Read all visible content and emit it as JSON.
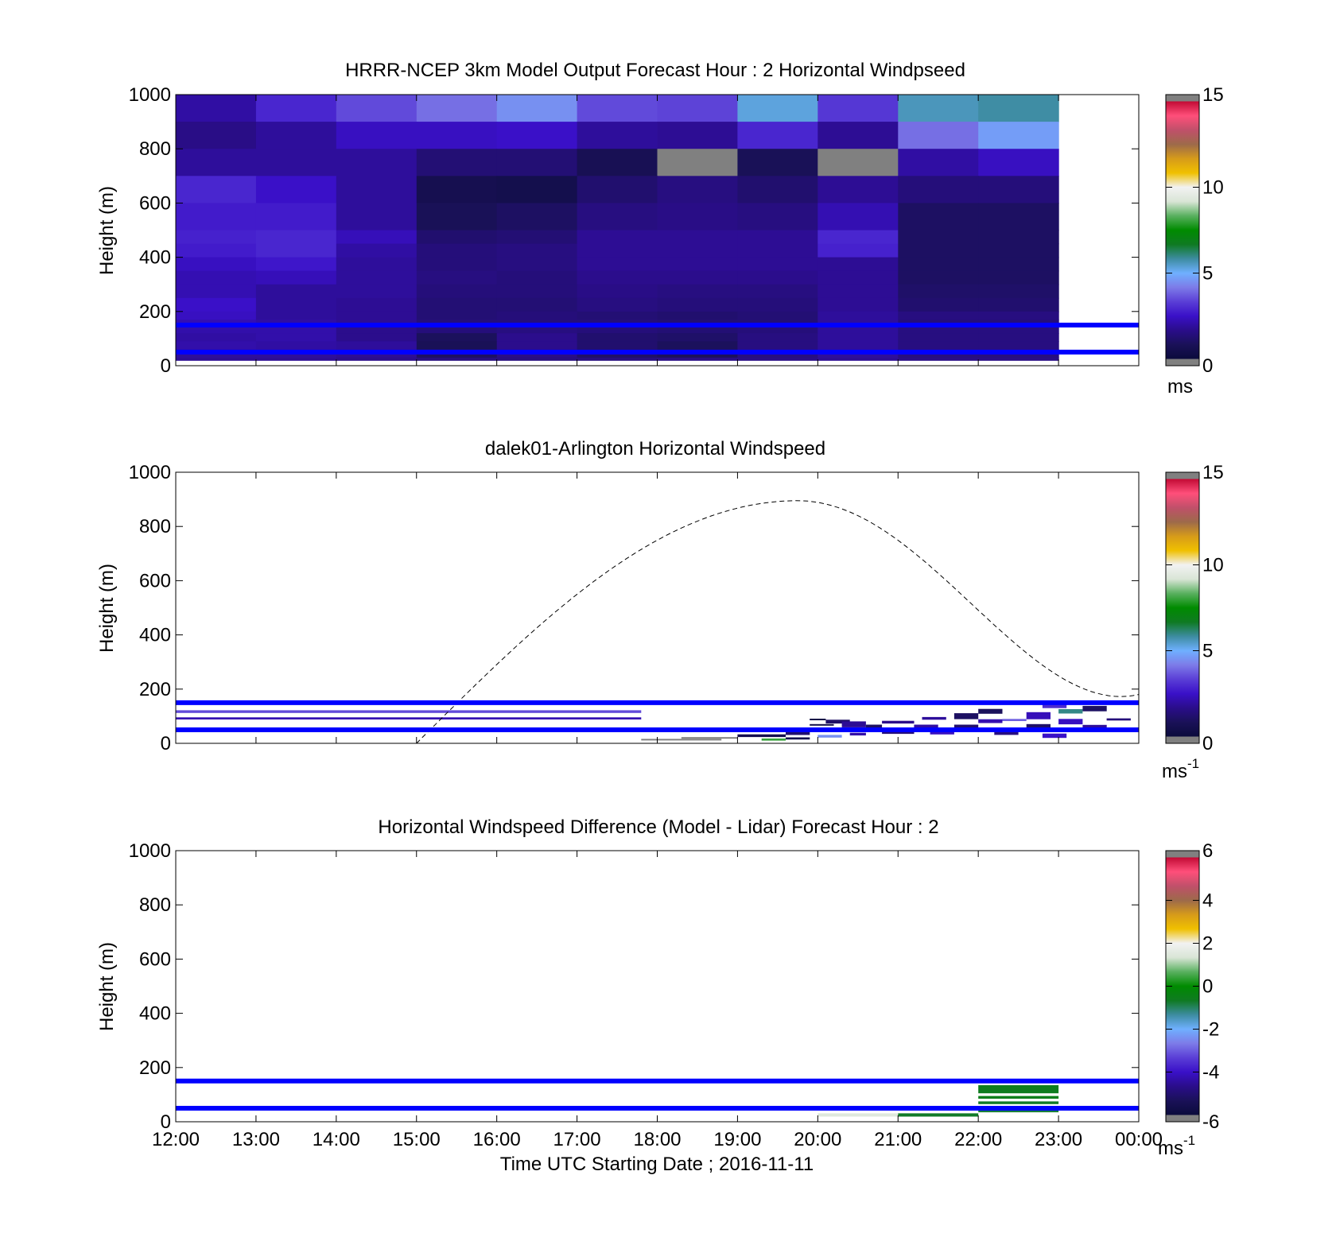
{
  "colors": {
    "windspeed_colormap": [
      "#0b0b3c",
      "#1a1158",
      "#2a0d8a",
      "#3a10c8",
      "#5a3ed6",
      "#7d7be8",
      "#6fb0ff",
      "#3d8ca0",
      "#0f7a22",
      "#008b00",
      "#59b05f",
      "#d9e5d6",
      "#f2f2f2",
      "#f0c000",
      "#d69b1a",
      "#9d6a4a",
      "#c0506a",
      "#ff4f7a",
      "#c20a34"
    ],
    "under_color": "#808080",
    "reference_lines": "#0000ff",
    "dashed_curve": "#000000"
  },
  "xaxis": {
    "ticks": [
      "12:00",
      "13:00",
      "14:00",
      "15:00",
      "16:00",
      "17:00",
      "18:00",
      "19:00",
      "20:00",
      "21:00",
      "22:00",
      "23:00",
      "00:00"
    ],
    "label": "Time UTC  Starting Date ; 2016-11-11"
  },
  "panels": [
    {
      "title": "HRRR-NCEP 3km Model Output   Forecast Hour : 2 Horizontal Windpseed",
      "ylabel": "Height (m)",
      "yticks": [
        "0",
        "200",
        "400",
        "600",
        "800",
        "1000"
      ],
      "colorbar": {
        "ticks": [
          "0",
          "5",
          "10",
          "15"
        ],
        "unit": "ms",
        "sup": ""
      }
    },
    {
      "title": "dalek01-Arlington  Horizontal Windspeed",
      "ylabel": "Height (m)",
      "yticks": [
        "0",
        "200",
        "400",
        "600",
        "800",
        "1000"
      ],
      "colorbar": {
        "ticks": [
          "0",
          "5",
          "10",
          "15"
        ],
        "unit": "ms",
        "sup": "-1"
      }
    },
    {
      "title": "Horizontal Windspeed Difference (Model - Lidar) Forecast Hour : 2",
      "ylabel": "Height (m)",
      "yticks": [
        "0",
        "200",
        "400",
        "600",
        "800",
        "1000"
      ],
      "colorbar": {
        "ticks": [
          "-6",
          "-4",
          "-2",
          "0",
          "2",
          "4",
          "6"
        ],
        "unit": "ms",
        "sup": "-1"
      }
    }
  ],
  "chart_data": [
    {
      "type": "heatmap",
      "title": "HRRR-NCEP 3km Model Output   Forecast Hour : 2 Horizontal Windpseed",
      "ylabel": "Height (m)",
      "ylim": [
        0,
        1000
      ],
      "xlim_hours_utc": [
        12,
        24
      ],
      "colorbar_range": [
        0,
        15
      ],
      "colorbar_unit": "ms",
      "columns_start_hours": [
        12,
        13,
        14,
        15,
        16,
        17,
        18,
        19,
        20,
        21,
        22
      ],
      "column_width_hours": 1,
      "row_bounds_m": [
        1000,
        900,
        800,
        700,
        600,
        500,
        450,
        400,
        350,
        300,
        250,
        200,
        170,
        150,
        120,
        90,
        60,
        30,
        20
      ],
      "values": [
        [
          2.0,
          2.9,
          3.5,
          4.0,
          4.5,
          3.5,
          3.4,
          5.3,
          3.2,
          5.6,
          5.8
        ],
        [
          1.6,
          1.9,
          2.4,
          2.4,
          2.5,
          1.9,
          1.8,
          2.9,
          1.8,
          4.0,
          4.7
        ],
        [
          1.9,
          1.9,
          1.9,
          1.3,
          1.3,
          0.7,
          -1,
          0.8,
          -1,
          2.0,
          2.4
        ],
        [
          2.9,
          2.5,
          1.9,
          0.6,
          0.5,
          1.2,
          1.5,
          1.2,
          1.8,
          1.4,
          1.4
        ],
        [
          2.7,
          2.7,
          1.9,
          0.8,
          1.0,
          1.5,
          1.6,
          1.5,
          2.2,
          1.0,
          1.0
        ],
        [
          2.8,
          2.9,
          2.3,
          1.2,
          1.3,
          1.8,
          1.8,
          1.8,
          2.9,
          1.0,
          1.0
        ],
        [
          2.7,
          2.9,
          2.0,
          1.4,
          1.5,
          1.8,
          1.8,
          1.8,
          2.8,
          1.0,
          1.0
        ],
        [
          2.4,
          2.6,
          1.9,
          1.4,
          1.5,
          1.8,
          1.8,
          1.8,
          1.8,
          1.0,
          1.0
        ],
        [
          2.2,
          2.3,
          1.9,
          1.5,
          1.4,
          1.7,
          1.7,
          1.7,
          1.8,
          1.0,
          1.0
        ],
        [
          2.2,
          1.9,
          1.9,
          1.4,
          1.4,
          1.6,
          1.5,
          1.5,
          1.8,
          1.1,
          1.1
        ],
        [
          2.5,
          1.9,
          1.8,
          1.3,
          1.3,
          1.5,
          1.4,
          1.4,
          1.8,
          1.2,
          1.2
        ],
        [
          2.4,
          1.9,
          1.8,
          1.3,
          1.4,
          1.3,
          1.2,
          1.3,
          1.9,
          1.5,
          1.5
        ],
        [
          2.2,
          2.0,
          1.8,
          1.4,
          1.4,
          1.4,
          1.3,
          1.3,
          1.9,
          1.4,
          1.4
        ],
        [
          2.1,
          2.1,
          1.7,
          1.4,
          1.5,
          1.4,
          1.3,
          1.4,
          1.9,
          1.5,
          1.5
        ],
        [
          2.0,
          2.1,
          1.7,
          0.9,
          1.7,
          1.2,
          1.1,
          1.5,
          1.9,
          1.5,
          1.5
        ],
        [
          2.1,
          2.0,
          1.9,
          0.8,
          1.7,
          1.2,
          0.9,
          1.5,
          1.9,
          1.5,
          1.5
        ],
        [
          1.9,
          1.9,
          1.8,
          1.0,
          1.6,
          1.1,
          0.9,
          1.5,
          1.9,
          1.5,
          1.5
        ],
        [
          1.8,
          1.8,
          1.7,
          1.5,
          1.5,
          1.5,
          1.6,
          1.6,
          1.8,
          1.6,
          1.6
        ]
      ],
      "reference_lines_m": [
        150,
        50
      ]
    },
    {
      "type": "heatmap",
      "title": "dalek01-Arlington  Horizontal Windspeed",
      "ylabel": "Height (m)",
      "ylim": [
        0,
        1000
      ],
      "xlim_hours_utc": [
        12,
        24
      ],
      "colorbar_range": [
        0,
        15
      ],
      "colorbar_unit": "ms-1",
      "streaks": [
        {
          "t0": 12.0,
          "t1": 17.8,
          "h": 117,
          "dh": 10,
          "v": 3.5
        },
        {
          "t0": 12.0,
          "t1": 17.8,
          "h": 92,
          "dh": 8,
          "v": 2.2
        },
        {
          "t0": 17.8,
          "t1": 18.8,
          "h": 14,
          "dh": 5,
          "v": -1
        },
        {
          "t0": 18.3,
          "t1": 19.0,
          "h": 20,
          "dh": 6,
          "v": -1
        },
        {
          "t0": 19.0,
          "t1": 19.6,
          "h": 28,
          "dh": 10,
          "v": 0.6
        },
        {
          "t0": 19.3,
          "t1": 19.6,
          "h": 14,
          "dh": 8,
          "v": 8.0
        },
        {
          "t0": 19.6,
          "t1": 19.9,
          "h": 38,
          "dh": 14,
          "v": 1.2
        },
        {
          "t0": 19.6,
          "t1": 19.9,
          "h": 18,
          "dh": 8,
          "v": 0.5
        },
        {
          "t0": 19.9,
          "t1": 20.1,
          "h": 88,
          "dh": 6,
          "v": 0.3
        },
        {
          "t0": 19.9,
          "t1": 20.2,
          "h": 68,
          "dh": 6,
          "v": 0.4
        },
        {
          "t0": 19.9,
          "t1": 20.3,
          "h": 48,
          "dh": 10,
          "v": 1.3
        },
        {
          "t0": 20.0,
          "t1": 20.3,
          "h": 26,
          "dh": 10,
          "v": 4.5
        },
        {
          "t0": 20.1,
          "t1": 20.4,
          "h": 80,
          "dh": 14,
          "v": 1.1
        },
        {
          "t0": 20.3,
          "t1": 20.6,
          "h": 70,
          "dh": 22,
          "v": 1.8
        },
        {
          "t0": 20.4,
          "t1": 20.6,
          "h": 34,
          "dh": 10,
          "v": 2.1
        },
        {
          "t0": 20.6,
          "t1": 20.8,
          "h": 60,
          "dh": 18,
          "v": 1.0
        },
        {
          "t0": 20.8,
          "t1": 21.2,
          "h": 78,
          "dh": 10,
          "v": 1.7
        },
        {
          "t0": 20.8,
          "t1": 21.2,
          "h": 42,
          "dh": 14,
          "v": 1.4
        },
        {
          "t0": 21.2,
          "t1": 21.5,
          "h": 62,
          "dh": 14,
          "v": 2.0
        },
        {
          "t0": 21.3,
          "t1": 21.6,
          "h": 92,
          "dh": 10,
          "v": 1.9
        },
        {
          "t0": 21.4,
          "t1": 21.7,
          "h": 40,
          "dh": 14,
          "v": 2.4
        },
        {
          "t0": 21.7,
          "t1": 22.0,
          "h": 100,
          "dh": 22,
          "v": 1.0
        },
        {
          "t0": 21.7,
          "t1": 22.0,
          "h": 60,
          "dh": 18,
          "v": 1.2
        },
        {
          "t0": 22.0,
          "t1": 22.3,
          "h": 118,
          "dh": 18,
          "v": 0.9
        },
        {
          "t0": 22.0,
          "t1": 22.3,
          "h": 82,
          "dh": 14,
          "v": 2.2
        },
        {
          "t0": 22.2,
          "t1": 22.5,
          "h": 40,
          "dh": 18,
          "v": 1.5
        },
        {
          "t0": 22.3,
          "t1": 22.6,
          "h": 86,
          "dh": 8,
          "v": 3.8
        },
        {
          "t0": 22.6,
          "t1": 22.9,
          "h": 102,
          "dh": 26,
          "v": 2.3
        },
        {
          "t0": 22.6,
          "t1": 22.9,
          "h": 60,
          "dh": 22,
          "v": 1.1
        },
        {
          "t0": 22.8,
          "t1": 23.1,
          "h": 140,
          "dh": 20,
          "v": 3.0
        },
        {
          "t0": 22.8,
          "t1": 23.1,
          "h": 28,
          "dh": 16,
          "v": 2.5
        },
        {
          "t0": 23.0,
          "t1": 23.3,
          "h": 118,
          "dh": 16,
          "v": 6.0
        },
        {
          "t0": 23.0,
          "t1": 23.3,
          "h": 80,
          "dh": 20,
          "v": 2.4
        },
        {
          "t0": 23.3,
          "t1": 23.6,
          "h": 128,
          "dh": 20,
          "v": 1.0
        },
        {
          "t0": 23.3,
          "t1": 23.6,
          "h": 60,
          "dh": 16,
          "v": 1.9
        },
        {
          "t0": 23.6,
          "t1": 23.9,
          "h": 88,
          "dh": 8,
          "v": 1.4
        },
        {
          "t0": 23.6,
          "t1": 23.9,
          "h": 50,
          "dh": 14,
          "v": 0.6
        }
      ],
      "dashed_curve": {
        "start_hours": 15.0,
        "peak_hours": 19.75,
        "end_hours": 24.0,
        "peak_height_m": 895
      },
      "reference_lines_m": [
        150,
        50
      ]
    },
    {
      "type": "heatmap",
      "title": "Horizontal Windspeed Difference (Model - Lidar) Forecast Hour : 2",
      "ylabel": "Height (m)",
      "ylim": [
        0,
        1000
      ],
      "xlim_hours_utc": [
        12,
        24
      ],
      "colorbar_range": [
        -6,
        6
      ],
      "colorbar_unit": "ms-1",
      "streaks": [
        {
          "t0": 20.0,
          "t1": 21.0,
          "h": 25,
          "dh": 12,
          "v": 1.5
        },
        {
          "t0": 21.0,
          "t1": 22.0,
          "h": 25,
          "dh": 12,
          "v": -0.7
        },
        {
          "t0": 22.0,
          "t1": 23.0,
          "h": 120,
          "dh": 30,
          "v": -0.6
        },
        {
          "t0": 22.0,
          "t1": 23.0,
          "h": 90,
          "dh": 10,
          "v": -0.5
        },
        {
          "t0": 22.0,
          "t1": 23.0,
          "h": 70,
          "dh": 10,
          "v": -0.7
        },
        {
          "t0": 22.0,
          "t1": 23.0,
          "h": 40,
          "dh": 10,
          "v": -0.8
        }
      ],
      "reference_lines_m": [
        150,
        50
      ]
    }
  ]
}
